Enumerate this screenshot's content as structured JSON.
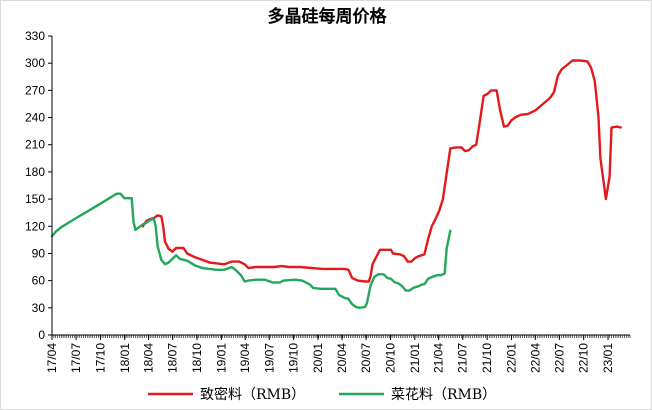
{
  "chart_data": {
    "type": "line",
    "title": "多晶硅每周价格",
    "xlabel": "",
    "ylabel": "",
    "ylim": [
      0,
      330
    ],
    "y_ticks": [
      0,
      30,
      60,
      90,
      120,
      150,
      180,
      210,
      240,
      270,
      300,
      330
    ],
    "x_range": [
      "2017-04-01",
      "2023-03-25"
    ],
    "x_tick_labels": [
      "17/04",
      "17/07",
      "17/10",
      "18/01",
      "18/04",
      "18/07",
      "18/10",
      "19/01",
      "19/04",
      "19/07",
      "19/10",
      "20/01",
      "20/04",
      "20/07",
      "20/10",
      "21/01",
      "21/04",
      "21/07",
      "21/10",
      "22/01",
      "22/04",
      "22/07",
      "22/10",
      "23/01"
    ],
    "grid": false,
    "legend_position": "bottom",
    "series": [
      {
        "name": "致密料（RMB）",
        "color": "#e31a1c",
        "points": [
          [
            "2018-03-10",
            120
          ],
          [
            "2018-03-24",
            126
          ],
          [
            "2018-04-07",
            128
          ],
          [
            "2018-04-21",
            129
          ],
          [
            "2018-05-05",
            132
          ],
          [
            "2018-05-19",
            131
          ],
          [
            "2018-05-26",
            120
          ],
          [
            "2018-06-02",
            103
          ],
          [
            "2018-06-16",
            95
          ],
          [
            "2018-06-30",
            92
          ],
          [
            "2018-07-14",
            96
          ],
          [
            "2018-08-11",
            96
          ],
          [
            "2018-08-25",
            90
          ],
          [
            "2018-09-22",
            86
          ],
          [
            "2018-10-20",
            83
          ],
          [
            "2018-11-17",
            80
          ],
          [
            "2018-12-15",
            79
          ],
          [
            "2019-01-12",
            78
          ],
          [
            "2019-02-09",
            81
          ],
          [
            "2019-03-09",
            81
          ],
          [
            "2019-03-30",
            78
          ],
          [
            "2019-04-13",
            74
          ],
          [
            "2019-05-11",
            75
          ],
          [
            "2019-06-22",
            75
          ],
          [
            "2019-07-20",
            75
          ],
          [
            "2019-08-17",
            76
          ],
          [
            "2019-09-14",
            75
          ],
          [
            "2019-10-26",
            75
          ],
          [
            "2019-12-07",
            74
          ],
          [
            "2020-01-18",
            73
          ],
          [
            "2020-02-29",
            73
          ],
          [
            "2020-04-11",
            73
          ],
          [
            "2020-04-25",
            72
          ],
          [
            "2020-05-09",
            63
          ],
          [
            "2020-05-30",
            60
          ],
          [
            "2020-06-27",
            59
          ],
          [
            "2020-07-11",
            59
          ],
          [
            "2020-07-18",
            65
          ],
          [
            "2020-07-25",
            78
          ],
          [
            "2020-08-08",
            86
          ],
          [
            "2020-08-22",
            94
          ],
          [
            "2020-09-19",
            94
          ],
          [
            "2020-10-03",
            94
          ],
          [
            "2020-10-10",
            90
          ],
          [
            "2020-11-07",
            89
          ],
          [
            "2020-11-21",
            87
          ],
          [
            "2020-12-05",
            81
          ],
          [
            "2020-12-19",
            81
          ],
          [
            "2021-01-02",
            85
          ],
          [
            "2021-01-16",
            87
          ],
          [
            "2021-02-06",
            89
          ],
          [
            "2021-02-20",
            106
          ],
          [
            "2021-03-06",
            120
          ],
          [
            "2021-03-20",
            128
          ],
          [
            "2021-04-03",
            137
          ],
          [
            "2021-04-17",
            150
          ],
          [
            "2021-05-01",
            178
          ],
          [
            "2021-05-15",
            206
          ],
          [
            "2021-06-05",
            207
          ],
          [
            "2021-06-26",
            207
          ],
          [
            "2021-07-10",
            203
          ],
          [
            "2021-07-24",
            204
          ],
          [
            "2021-08-07",
            208
          ],
          [
            "2021-08-21",
            210
          ],
          [
            "2021-09-04",
            236
          ],
          [
            "2021-09-18",
            264
          ],
          [
            "2021-10-02",
            266
          ],
          [
            "2021-10-16",
            270
          ],
          [
            "2021-11-06",
            270
          ],
          [
            "2021-11-20",
            247
          ],
          [
            "2021-12-04",
            230
          ],
          [
            "2021-12-18",
            231
          ],
          [
            "2022-01-01",
            237
          ],
          [
            "2022-01-15",
            240
          ],
          [
            "2022-02-05",
            243
          ],
          [
            "2022-03-05",
            244
          ],
          [
            "2022-04-02",
            248
          ],
          [
            "2022-04-30",
            255
          ],
          [
            "2022-05-28",
            262
          ],
          [
            "2022-06-11",
            268
          ],
          [
            "2022-06-25",
            286
          ],
          [
            "2022-07-09",
            293
          ],
          [
            "2022-07-30",
            298
          ],
          [
            "2022-08-20",
            303
          ],
          [
            "2022-09-17",
            303
          ],
          [
            "2022-10-15",
            302
          ],
          [
            "2022-10-29",
            295
          ],
          [
            "2022-11-12",
            280
          ],
          [
            "2022-11-26",
            240
          ],
          [
            "2022-12-03",
            195
          ],
          [
            "2022-12-17",
            165
          ],
          [
            "2022-12-24",
            150
          ],
          [
            "2023-01-07",
            175
          ],
          [
            "2023-01-14",
            229
          ],
          [
            "2023-02-04",
            230
          ],
          [
            "2023-02-18",
            229
          ]
        ]
      },
      {
        "name": "菜花料（RMB）",
        "color": "#22a85a",
        "points": [
          [
            "2017-04-01",
            109
          ],
          [
            "2017-04-15",
            114
          ],
          [
            "2017-05-06",
            119
          ],
          [
            "2017-06-03",
            124
          ],
          [
            "2017-07-01",
            129
          ],
          [
            "2017-08-05",
            135
          ],
          [
            "2017-09-02",
            140
          ],
          [
            "2017-10-07",
            146
          ],
          [
            "2017-11-04",
            151
          ],
          [
            "2017-12-02",
            156
          ],
          [
            "2017-12-16",
            156
          ],
          [
            "2017-12-30",
            151
          ],
          [
            "2018-01-13",
            151
          ],
          [
            "2018-01-27",
            151
          ],
          [
            "2018-02-03",
            125
          ],
          [
            "2018-02-10",
            116
          ],
          [
            "2018-02-24",
            119
          ],
          [
            "2018-03-10",
            122
          ],
          [
            "2018-03-24",
            124
          ],
          [
            "2018-04-07",
            127
          ],
          [
            "2018-04-21",
            128
          ],
          [
            "2018-04-28",
            120
          ],
          [
            "2018-05-05",
            98
          ],
          [
            "2018-05-19",
            83
          ],
          [
            "2018-06-02",
            78
          ],
          [
            "2018-06-16",
            80
          ],
          [
            "2018-06-30",
            84
          ],
          [
            "2018-07-14",
            88
          ],
          [
            "2018-07-28",
            84
          ],
          [
            "2018-08-25",
            82
          ],
          [
            "2018-09-22",
            77
          ],
          [
            "2018-10-20",
            74
          ],
          [
            "2018-11-17",
            73
          ],
          [
            "2018-12-15",
            72
          ],
          [
            "2019-01-12",
            72
          ],
          [
            "2019-02-09",
            75
          ],
          [
            "2019-02-23",
            72
          ],
          [
            "2019-03-16",
            66
          ],
          [
            "2019-03-30",
            59
          ],
          [
            "2019-04-13",
            60
          ],
          [
            "2019-05-11",
            61
          ],
          [
            "2019-06-15",
            61
          ],
          [
            "2019-07-13",
            58
          ],
          [
            "2019-08-10",
            58
          ],
          [
            "2019-08-24",
            60
          ],
          [
            "2019-10-05",
            61
          ],
          [
            "2019-11-02",
            60
          ],
          [
            "2019-11-30",
            56
          ],
          [
            "2019-12-14",
            52
          ],
          [
            "2020-01-11",
            51
          ],
          [
            "2020-02-08",
            51
          ],
          [
            "2020-03-07",
            51
          ],
          [
            "2020-03-21",
            44
          ],
          [
            "2020-04-11",
            41
          ],
          [
            "2020-04-25",
            40
          ],
          [
            "2020-05-09",
            34
          ],
          [
            "2020-05-23",
            31
          ],
          [
            "2020-06-06",
            30
          ],
          [
            "2020-06-27",
            31
          ],
          [
            "2020-07-04",
            35
          ],
          [
            "2020-07-18",
            55
          ],
          [
            "2020-08-01",
            64
          ],
          [
            "2020-08-15",
            67
          ],
          [
            "2020-09-05",
            67
          ],
          [
            "2020-09-19",
            63
          ],
          [
            "2020-10-03",
            62
          ],
          [
            "2020-10-17",
            58
          ],
          [
            "2020-10-31",
            57
          ],
          [
            "2020-11-14",
            54
          ],
          [
            "2020-11-28",
            49
          ],
          [
            "2020-12-12",
            49
          ],
          [
            "2020-12-26",
            52
          ],
          [
            "2021-01-16",
            54
          ],
          [
            "2021-01-30",
            56
          ],
          [
            "2021-02-06",
            56
          ],
          [
            "2021-02-20",
            62
          ],
          [
            "2021-03-06",
            64
          ],
          [
            "2021-03-27",
            66
          ],
          [
            "2021-04-10",
            66
          ],
          [
            "2021-04-24",
            68
          ],
          [
            "2021-05-01",
            95
          ],
          [
            "2021-05-15",
            115
          ]
        ]
      }
    ]
  }
}
